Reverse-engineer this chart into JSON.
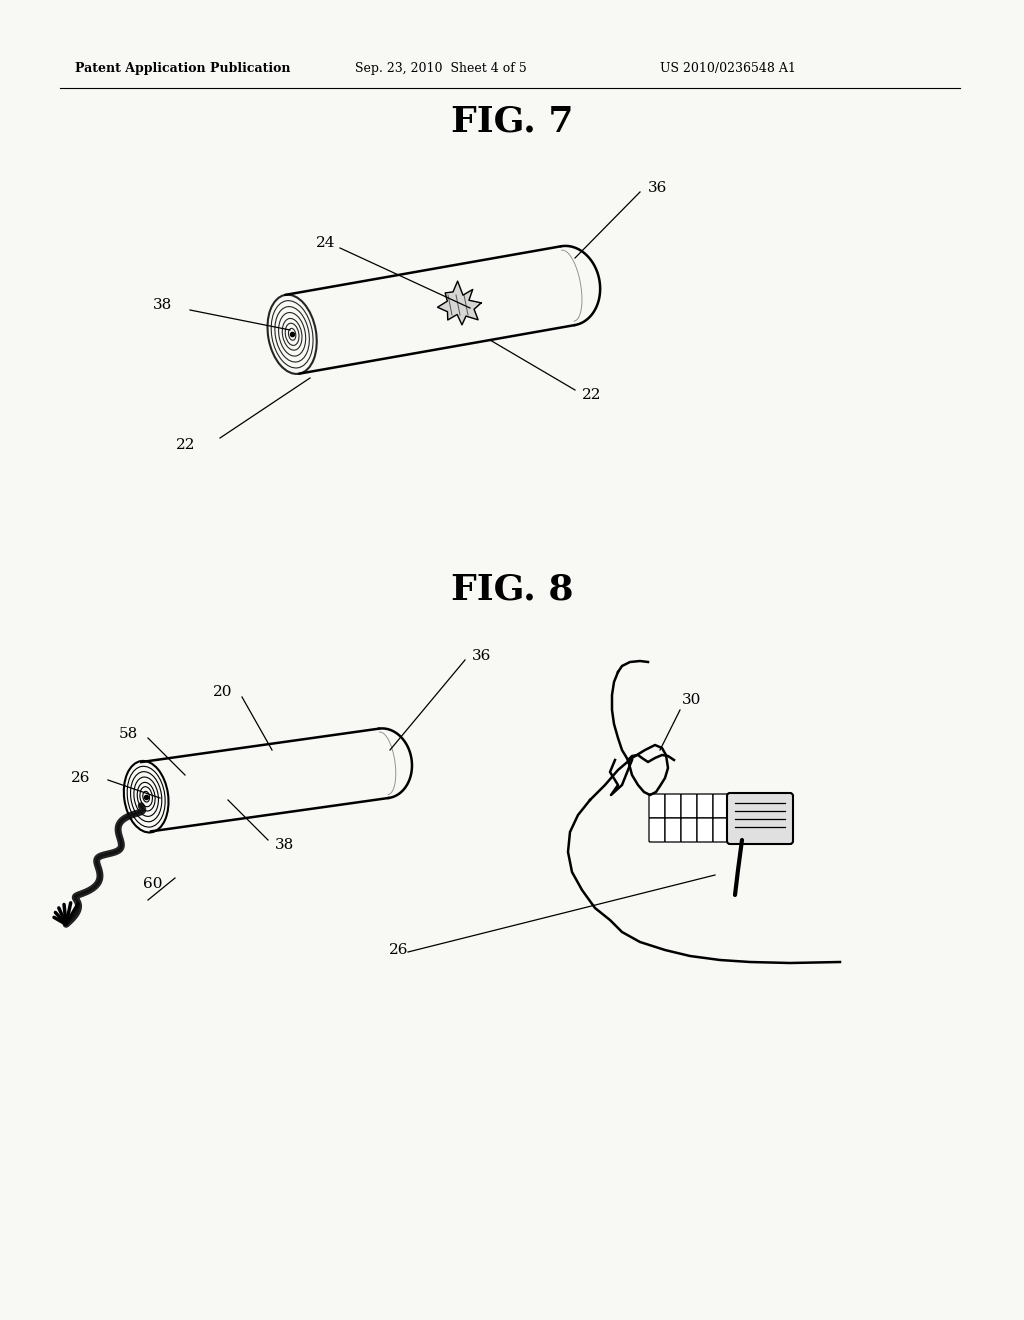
{
  "bg_color": "#f8f8f5",
  "header_text": "Patent Application Publication",
  "header_date": "Sep. 23, 2010  Sheet 4 of 5",
  "header_patent": "US 2010/0236548 A1",
  "fig7_title": "FIG. 7",
  "fig8_title": "FIG. 8"
}
